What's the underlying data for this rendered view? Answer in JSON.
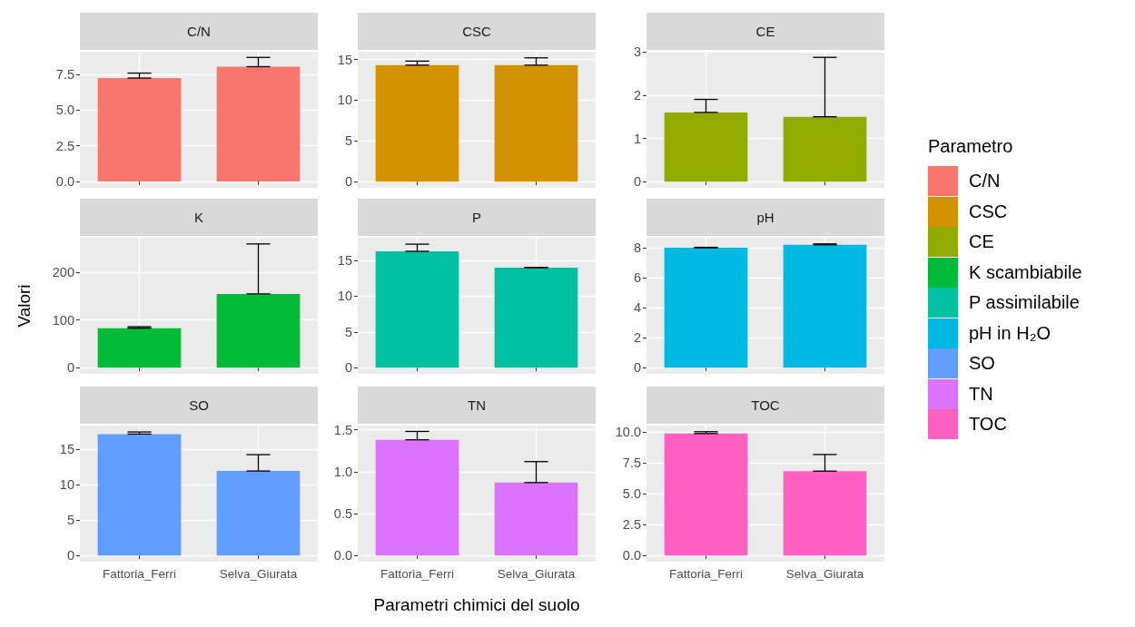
{
  "chart_data": [
    {
      "type": "bar",
      "title": "C/N",
      "categories": [
        null,
        null
      ],
      "series": [
        {
          "name": "C/N",
          "color": "#f8766d",
          "values": [
            7.25,
            8.05
          ],
          "errors": [
            [
              7.25,
              7.6
            ],
            [
              8.05,
              8.7
            ]
          ]
        }
      ],
      "ylim": [
        -0.45,
        9.1
      ],
      "yticks": [
        {
          "value": 0,
          "label": "0.0"
        },
        {
          "value": 2.5,
          "label": "2.5"
        },
        {
          "value": 5,
          "label": "5.0"
        },
        {
          "value": 7.5,
          "label": "7.5"
        }
      ],
      "grid": true,
      "legend": "right"
    },
    {
      "type": "bar",
      "title": "CSC",
      "categories": [
        null,
        null
      ],
      "series": [
        {
          "name": "CSC",
          "color": "#d39200",
          "values": [
            14.3,
            14.3
          ],
          "errors": [
            [
              14.3,
              14.8
            ],
            [
              14.3,
              15.2
            ]
          ]
        }
      ],
      "ylim": [
        -0.75,
        15.95
      ],
      "yticks": [
        0,
        5,
        10,
        15
      ],
      "grid": true,
      "legend": "right"
    },
    {
      "type": "bar",
      "title": "CE",
      "categories": [
        null,
        null
      ],
      "series": [
        {
          "name": "CE",
          "color": "#93aa00",
          "values": [
            1.6,
            1.5
          ],
          "errors": [
            [
              1.6,
              1.9
            ],
            [
              1.5,
              2.87
            ]
          ]
        }
      ],
      "ylim": [
        -0.14,
        3.0
      ],
      "yticks": [
        0,
        1,
        2,
        3
      ],
      "grid": true,
      "legend": "right"
    },
    {
      "type": "bar",
      "title": "K",
      "ylabel": "Valori",
      "categories": [
        null,
        null
      ],
      "series": [
        {
          "name": "K scambiabile",
          "color": "#00ba38",
          "values": [
            83,
            155
          ],
          "errors": [
            [
              83,
              86
            ],
            [
              155,
              260
            ]
          ]
        }
      ],
      "ylim": [
        -13,
        273
      ],
      "yticks": [
        0,
        100,
        200
      ],
      "grid": true,
      "legend": "right"
    },
    {
      "type": "bar",
      "title": "P",
      "categories": [
        null,
        null
      ],
      "series": [
        {
          "name": "P assimilabile",
          "color": "#00c19f",
          "values": [
            16.3,
            14.0
          ],
          "errors": [
            [
              16.3,
              17.3
            ],
            [
              14.0,
              14.05
            ]
          ]
        }
      ],
      "ylim": [
        -0.87,
        18.2
      ],
      "yticks": [
        0,
        5,
        10,
        15
      ],
      "grid": true,
      "legend": "right"
    },
    {
      "type": "bar",
      "title": "pH",
      "legend_title": "Parametro",
      "categories": [
        null,
        null
      ],
      "series": [
        {
          "name": "pH in H₂O",
          "color": "#00b9e3",
          "values": [
            8.0,
            8.2
          ],
          "errors": [
            [
              8.0,
              8.03
            ],
            [
              8.2,
              8.26
            ]
          ]
        }
      ],
      "ylim": [
        -0.41,
        8.67
      ],
      "yticks": [
        0,
        2,
        4,
        6,
        8
      ],
      "grid": true,
      "legend": "right"
    },
    {
      "type": "bar",
      "title": "SO",
      "categories": [
        "Fattoria_Ferri",
        "Selva_Giurata"
      ],
      "series": [
        {
          "name": "SO",
          "color": "#619cff",
          "values": [
            17.1,
            11.9
          ],
          "errors": [
            [
              17.1,
              17.4
            ],
            [
              11.9,
              14.2
            ]
          ]
        }
      ],
      "ylim": [
        -0.87,
        18.3
      ],
      "yticks": [
        0,
        5,
        10,
        15
      ],
      "grid": true,
      "legend": "right"
    },
    {
      "type": "bar",
      "title": "TN",
      "xlabel": "Parametri chimici del suolo",
      "categories": [
        "Fattoria_Ferri",
        "Selva_Giurata"
      ],
      "series": [
        {
          "name": "TN",
          "color": "#db72fb",
          "values": [
            1.38,
            0.87
          ],
          "errors": [
            [
              1.38,
              1.48
            ],
            [
              0.87,
              1.12
            ]
          ]
        }
      ],
      "ylim": [
        -0.074,
        1.55
      ],
      "yticks": [
        {
          "value": 0,
          "label": "0.0"
        },
        {
          "value": 0.5,
          "label": "0.5"
        },
        {
          "value": 1,
          "label": "1.0"
        },
        {
          "value": 1.5,
          "label": "1.5"
        }
      ],
      "grid": true,
      "legend": "right"
    },
    {
      "type": "bar",
      "title": "TOC",
      "categories": [
        "Fattoria_Ferri",
        "Selva_Giurata"
      ],
      "series": [
        {
          "name": "TOC",
          "color": "#ff61c3",
          "values": [
            9.9,
            6.85
          ],
          "errors": [
            [
              9.9,
              10.05
            ],
            [
              6.85,
              8.2
            ]
          ]
        }
      ],
      "ylim": [
        -0.5,
        10.55
      ],
      "yticks": [
        {
          "value": 0,
          "label": "0.0"
        },
        {
          "value": 2.5,
          "label": "2.5"
        },
        {
          "value": 5,
          "label": "5.0"
        },
        {
          "value": 7.5,
          "label": "7.5"
        },
        {
          "value": 10,
          "label": "10.0"
        }
      ],
      "grid": true,
      "legend": "right"
    }
  ]
}
